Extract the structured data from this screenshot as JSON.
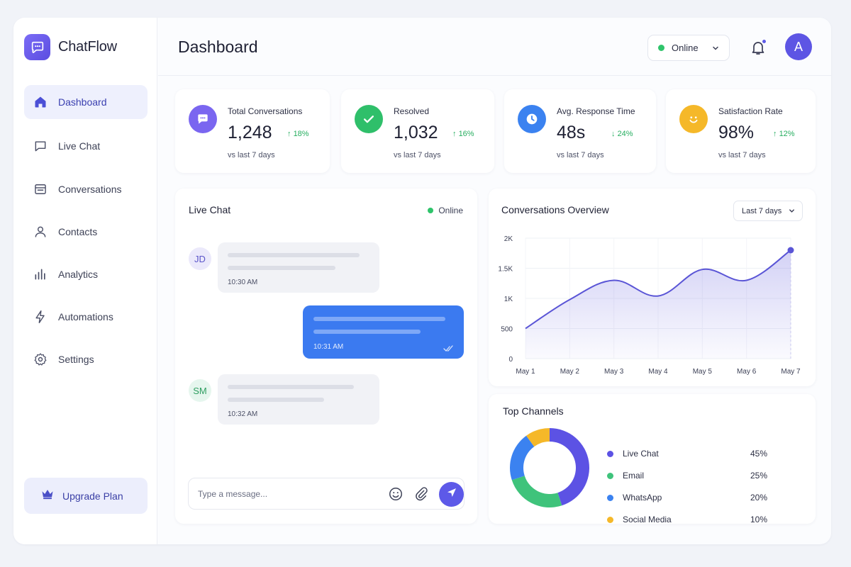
{
  "brand": {
    "name": "ChatFlow",
    "icon": "chat-bubble-icon",
    "accent": "#5d55e4"
  },
  "sidebar": {
    "items": [
      {
        "label": "Dashboard",
        "icon": "home-icon",
        "active": true
      },
      {
        "label": "Live Chat",
        "icon": "message-square-icon",
        "active": false
      },
      {
        "label": "Conversations",
        "icon": "inbox-icon",
        "active": false
      },
      {
        "label": "Contacts",
        "icon": "user-icon",
        "active": false
      },
      {
        "label": "Analytics",
        "icon": "bar-chart-icon",
        "active": false
      },
      {
        "label": "Automations",
        "icon": "lightning-icon",
        "active": false
      },
      {
        "label": "Settings",
        "icon": "gear-icon",
        "active": false
      }
    ],
    "upgrade_label": "Upgrade Plan",
    "upgrade_icon": "crown-icon"
  },
  "header": {
    "title": "Dashboard",
    "status_label": "Online",
    "status_color": "#2fc46b",
    "avatar_initial": "A",
    "has_notification": true
  },
  "stats": [
    {
      "label": "Total Conversations",
      "value": "1,248",
      "delta": "18%",
      "direction": "up",
      "sub": "vs last 7 days",
      "icon": "chat-bubble-icon",
      "color": "#7a66f0"
    },
    {
      "label": "Resolved",
      "value": "1,032",
      "delta": "16%",
      "direction": "up",
      "sub": "vs last 7 days",
      "icon": "check-icon",
      "color": "#2fbf6a"
    },
    {
      "label": "Avg. Response Time",
      "value": "48s",
      "delta": "24%",
      "direction": "down",
      "sub": "vs last 7 days",
      "icon": "clock-icon",
      "color": "#3b82f0"
    },
    {
      "label": "Satisfaction Rate",
      "value": "98%",
      "delta": "12%",
      "direction": "up",
      "sub": "vs last 7 days",
      "icon": "smile-icon",
      "color": "#f5b829"
    }
  ],
  "live_chat": {
    "title": "Live Chat",
    "status_label": "Online",
    "messages": [
      {
        "from": "JD",
        "side": "left",
        "time": "10:30 AM"
      },
      {
        "from": "me",
        "side": "right",
        "time": "10:31 AM",
        "read": true
      },
      {
        "from": "SM",
        "side": "left",
        "time": "10:32 AM"
      }
    ],
    "composer_placeholder": "Type a message..."
  },
  "overview": {
    "title": "Conversations Overview",
    "range_label": "Last 7 days",
    "chart_data": {
      "type": "area",
      "title": "Conversations Overview",
      "x": [
        "May 1",
        "May 2",
        "May 3",
        "May 4",
        "May 5",
        "May 6",
        "May 7"
      ],
      "y_ticks": [
        "0",
        "500",
        "1K",
        "1.5K",
        "2K"
      ],
      "ylim": [
        0,
        2000
      ],
      "series": [
        {
          "values": [
            500,
            980,
            1300,
            1040,
            1480,
            1300,
            1800
          ]
        }
      ],
      "grid": true,
      "color": "#5a55d6"
    }
  },
  "channels": {
    "title": "Top Channels",
    "chart_data": {
      "type": "pie",
      "title": "Top Channels",
      "categories": [
        "Live Chat",
        "Email",
        "WhatsApp",
        "Social Media"
      ],
      "values": [
        45,
        25,
        20,
        10
      ],
      "labels": [
        "45%",
        "25%",
        "20%",
        "10%"
      ],
      "colors": [
        "#5c52e4",
        "#3fc37b",
        "#3b82f0",
        "#f5b829"
      ]
    }
  }
}
